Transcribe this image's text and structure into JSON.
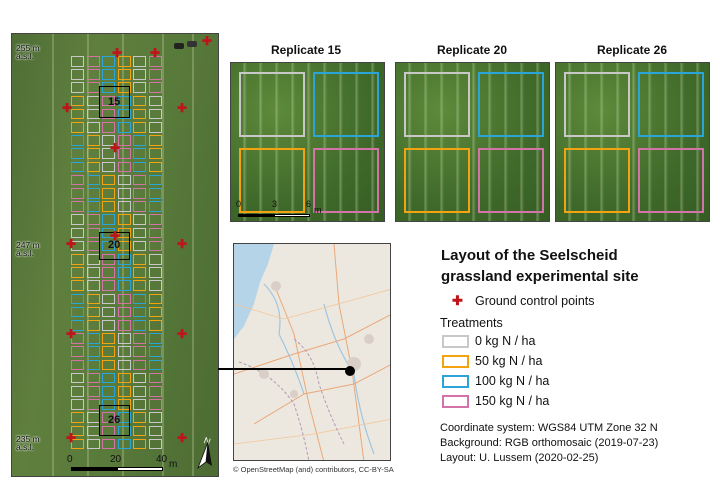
{
  "main_map": {
    "block_labels": [
      "15",
      "20",
      "26"
    ],
    "elevations": [
      {
        "value": "255 m",
        "unit": "a.s.l."
      },
      {
        "value": "247 m",
        "unit": "a.s.l."
      },
      {
        "value": "235 m",
        "unit": "a.s.l."
      }
    ],
    "scale_ticks": [
      "0",
      "20",
      "40"
    ],
    "scale_unit": "m",
    "north_label": "N"
  },
  "replicates": [
    {
      "title": "Replicate 15"
    },
    {
      "title": "Replicate 20"
    },
    {
      "title": "Replicate 26"
    }
  ],
  "replicate_scale": {
    "ticks": [
      "0",
      "3",
      "6"
    ],
    "unit": "m"
  },
  "inset": {
    "credit": "© OpenStreetMap (and) contributors, CC-BY-SA"
  },
  "legend": {
    "title_line1": "Layout of the Seelscheid",
    "title_line2": "grassland experimental site",
    "gcp_label": "Ground control points",
    "treatments_heading": "Treatments",
    "treatments": [
      {
        "label": "0 kg N / ha",
        "color": "#c8c8c8"
      },
      {
        "label": "50 kg N / ha",
        "color": "#f2a30f"
      },
      {
        "label": "100 kg N / ha",
        "color": "#2ba4d8"
      },
      {
        "label": "150 kg N / ha",
        "color": "#d373a8"
      }
    ],
    "info": [
      "Coordinate system: WGS84 UTM Zone 32 N",
      "Background: RGB orthomosaic (2019-07-23)",
      "Layout: U. Lussem (2020-02-25)"
    ]
  },
  "colors": {
    "gcp": "#c0141b",
    "connector": "#000000"
  }
}
